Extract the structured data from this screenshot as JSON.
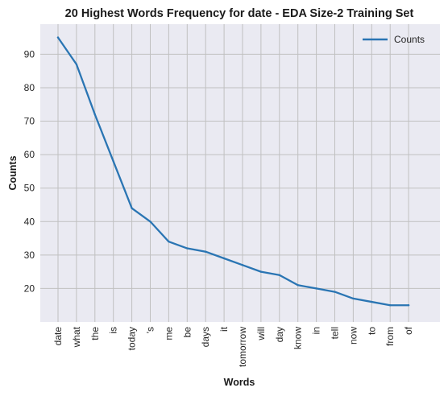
{
  "chart_data": {
    "type": "line",
    "title": "20 Highest Words Frequency for date - EDA Size-2 Training Set",
    "xlabel": "Words",
    "ylabel": "Counts",
    "categories": [
      "date",
      "what",
      "the",
      "is",
      "today",
      "'s",
      "me",
      "be",
      "days",
      "it",
      "tomorrow",
      "will",
      "day",
      "know",
      "in",
      "tell",
      "now",
      "to",
      "from",
      "of"
    ],
    "series": [
      {
        "name": "Counts",
        "values": [
          95,
          87,
          72,
          58,
          44,
          40,
          34,
          32,
          31,
          29,
          27,
          25,
          24,
          21,
          20,
          19,
          17,
          16,
          15,
          15
        ],
        "color": "#2a75b3"
      }
    ],
    "yticks": [
      20,
      30,
      40,
      50,
      60,
      70,
      80,
      90
    ],
    "ylim": [
      10.0,
      99.0
    ],
    "grid": true,
    "legend_position": "top-right",
    "background": "#eaeaf2",
    "grid_color": "#c0c0c0"
  }
}
